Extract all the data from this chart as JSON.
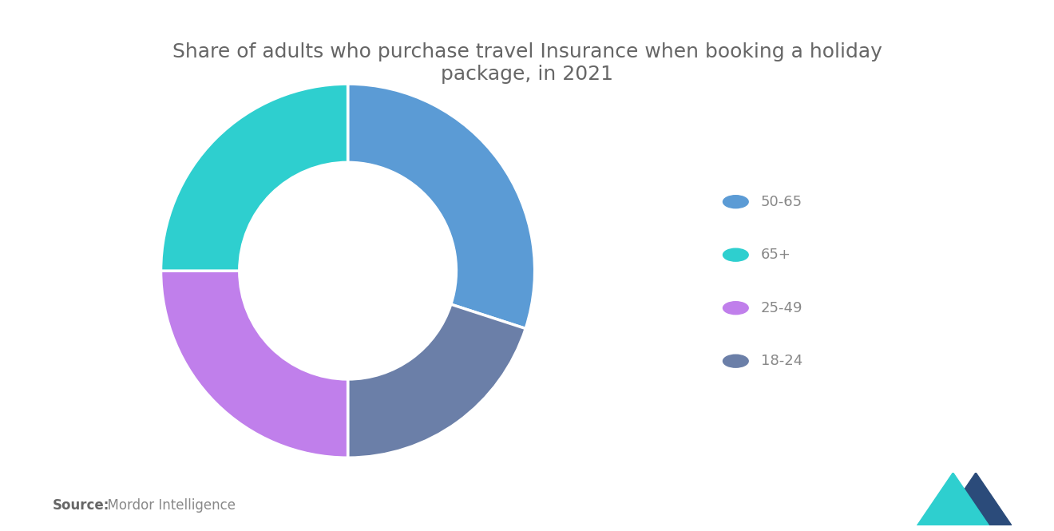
{
  "title": "Share of adults who purchase travel Insurance when booking a holiday\npackage, in 2021",
  "slices": [
    {
      "label": "50-65",
      "value": 30,
      "color": "#5B9BD5"
    },
    {
      "label": "18-24",
      "value": 20,
      "color": "#6B7FA8"
    },
    {
      "label": "25-49",
      "value": 25,
      "color": "#C07FEB"
    },
    {
      "label": "65+",
      "value": 25,
      "color": "#2ECFCF"
    }
  ],
  "legend_order": [
    "50-65",
    "65+",
    "25-49",
    "18-24"
  ],
  "legend_colors": {
    "50-65": "#5B9BD5",
    "65+": "#2ECFCF",
    "25-49": "#C07FEB",
    "18-24": "#6B7FA8"
  },
  "background_color": "#FFFFFF",
  "title_color": "#666666",
  "title_fontsize": 18,
  "source_bold": "Source:",
  "source_normal": "  Mordor Intelligence"
}
